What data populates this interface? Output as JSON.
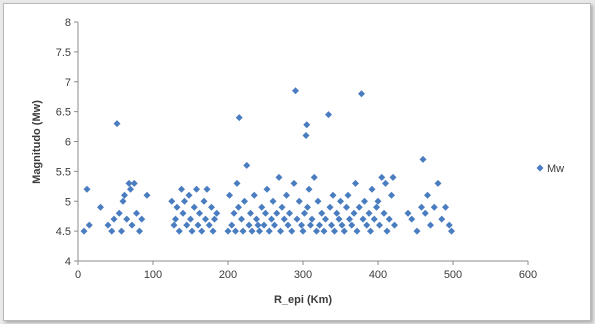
{
  "chart_data": {
    "type": "scatter",
    "xlabel": "R_epi (Km)",
    "ylabel": "Magnitudo (Mw)",
    "xlim": [
      0,
      600
    ],
    "ylim": [
      4,
      8
    ],
    "x_ticks": [
      "0",
      "100",
      "200",
      "300",
      "400",
      "500",
      "600"
    ],
    "y_ticks": [
      "4",
      "4.5",
      "5",
      "5.5",
      "6",
      "6.5",
      "7",
      "7.5",
      "8"
    ],
    "grid": false,
    "legend_position": "right",
    "series": [
      {
        "name": "Mw",
        "color": "#4a7dc0",
        "marker": "diamond",
        "points": [
          [
            8,
            4.5
          ],
          [
            12,
            5.2
          ],
          [
            15,
            4.6
          ],
          [
            30,
            4.9
          ],
          [
            40,
            4.6
          ],
          [
            45,
            4.5
          ],
          [
            48,
            4.7
          ],
          [
            52,
            6.3
          ],
          [
            55,
            4.8
          ],
          [
            58,
            4.5
          ],
          [
            60,
            5.0
          ],
          [
            62,
            5.1
          ],
          [
            65,
            4.7
          ],
          [
            68,
            5.3
          ],
          [
            70,
            5.2
          ],
          [
            72,
            4.6
          ],
          [
            75,
            5.3
          ],
          [
            78,
            4.8
          ],
          [
            82,
            4.5
          ],
          [
            85,
            4.7
          ],
          [
            92,
            5.1
          ],
          [
            125,
            5.0
          ],
          [
            128,
            4.6
          ],
          [
            130,
            4.7
          ],
          [
            132,
            4.9
          ],
          [
            135,
            4.5
          ],
          [
            138,
            5.2
          ],
          [
            140,
            4.8
          ],
          [
            142,
            5.0
          ],
          [
            145,
            4.6
          ],
          [
            148,
            5.1
          ],
          [
            150,
            4.7
          ],
          [
            152,
            4.5
          ],
          [
            155,
            4.9
          ],
          [
            158,
            5.2
          ],
          [
            160,
            4.6
          ],
          [
            162,
            4.8
          ],
          [
            165,
            4.5
          ],
          [
            168,
            5.0
          ],
          [
            170,
            4.7
          ],
          [
            172,
            5.2
          ],
          [
            175,
            4.6
          ],
          [
            178,
            4.9
          ],
          [
            180,
            4.5
          ],
          [
            182,
            4.7
          ],
          [
            185,
            4.8
          ],
          [
            200,
            4.5
          ],
          [
            202,
            5.1
          ],
          [
            205,
            4.6
          ],
          [
            208,
            4.8
          ],
          [
            210,
            4.5
          ],
          [
            212,
            5.3
          ],
          [
            214,
            4.9
          ],
          [
            215,
            6.4
          ],
          [
            218,
            4.7
          ],
          [
            220,
            4.5
          ],
          [
            222,
            5.0
          ],
          [
            225,
            5.6
          ],
          [
            228,
            4.6
          ],
          [
            230,
            4.8
          ],
          [
            232,
            4.5
          ],
          [
            235,
            5.1
          ],
          [
            238,
            4.7
          ],
          [
            240,
            4.6
          ],
          [
            242,
            4.5
          ],
          [
            245,
            4.9
          ],
          [
            248,
            4.6
          ],
          [
            250,
            4.8
          ],
          [
            252,
            5.2
          ],
          [
            255,
            4.5
          ],
          [
            258,
            4.7
          ],
          [
            260,
            5.0
          ],
          [
            262,
            4.6
          ],
          [
            265,
            4.8
          ],
          [
            268,
            5.4
          ],
          [
            270,
            4.5
          ],
          [
            272,
            4.9
          ],
          [
            275,
            4.7
          ],
          [
            278,
            5.1
          ],
          [
            280,
            4.6
          ],
          [
            282,
            4.8
          ],
          [
            285,
            4.5
          ],
          [
            288,
            5.3
          ],
          [
            290,
            6.85
          ],
          [
            292,
            4.7
          ],
          [
            295,
            5.0
          ],
          [
            298,
            4.6
          ],
          [
            300,
            4.5
          ],
          [
            302,
            4.8
          ],
          [
            304,
            6.1
          ],
          [
            305,
            6.28
          ],
          [
            306,
            4.9
          ],
          [
            308,
            5.2
          ],
          [
            310,
            4.6
          ],
          [
            312,
            4.7
          ],
          [
            315,
            5.4
          ],
          [
            318,
            4.5
          ],
          [
            320,
            5.0
          ],
          [
            322,
            4.6
          ],
          [
            325,
            4.8
          ],
          [
            328,
            4.5
          ],
          [
            330,
            4.7
          ],
          [
            334,
            6.45
          ],
          [
            336,
            4.9
          ],
          [
            338,
            4.6
          ],
          [
            340,
            5.1
          ],
          [
            342,
            4.5
          ],
          [
            345,
            4.8
          ],
          [
            348,
            4.7
          ],
          [
            350,
            5.0
          ],
          [
            352,
            4.6
          ],
          [
            355,
            4.5
          ],
          [
            358,
            4.9
          ],
          [
            360,
            5.1
          ],
          [
            362,
            4.7
          ],
          [
            365,
            4.6
          ],
          [
            368,
            4.8
          ],
          [
            370,
            5.3
          ],
          [
            372,
            4.5
          ],
          [
            375,
            4.9
          ],
          [
            378,
            6.8
          ],
          [
            380,
            4.7
          ],
          [
            382,
            5.0
          ],
          [
            385,
            4.6
          ],
          [
            388,
            4.8
          ],
          [
            390,
            4.5
          ],
          [
            392,
            5.2
          ],
          [
            395,
            4.7
          ],
          [
            398,
            4.9
          ],
          [
            400,
            5.0
          ],
          [
            402,
            4.6
          ],
          [
            405,
            5.4
          ],
          [
            408,
            4.8
          ],
          [
            410,
            5.3
          ],
          [
            412,
            4.5
          ],
          [
            415,
            4.7
          ],
          [
            418,
            5.1
          ],
          [
            420,
            5.4
          ],
          [
            422,
            4.6
          ],
          [
            440,
            4.8
          ],
          [
            445,
            4.7
          ],
          [
            452,
            4.5
          ],
          [
            458,
            4.9
          ],
          [
            460,
            5.7
          ],
          [
            463,
            4.8
          ],
          [
            466,
            5.1
          ],
          [
            470,
            4.6
          ],
          [
            475,
            4.9
          ],
          [
            480,
            5.3
          ],
          [
            485,
            4.7
          ],
          [
            490,
            4.9
          ],
          [
            495,
            4.6
          ],
          [
            498,
            4.5
          ]
        ]
      }
    ]
  }
}
